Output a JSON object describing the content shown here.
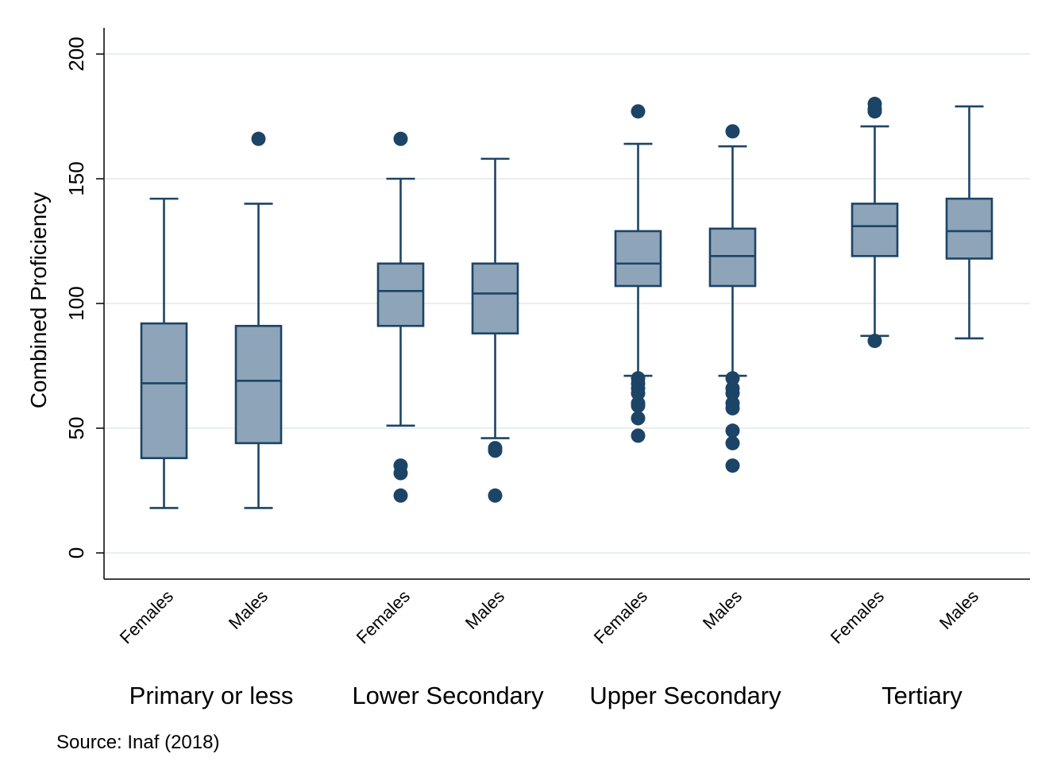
{
  "chart_data": {
    "type": "box",
    "ylabel": "Combined Proficiency",
    "ylim": [
      -10,
      210
    ],
    "yticks": [
      "0",
      "50",
      "100",
      "150",
      "200"
    ],
    "grid": true,
    "source_note": "Source: Inaf (2018)",
    "colors": {
      "box_fill": "#8ea4b9",
      "box_stroke": "#1c4466",
      "outlier": "#1c4466",
      "grid": "#e8eef0"
    },
    "groups": [
      {
        "label": "Primary or less",
        "boxes": [
          {
            "category": "Females",
            "whisker_low": 18,
            "q1": 38,
            "median": 68,
            "q3": 92,
            "whisker_high": 142,
            "outliers": []
          },
          {
            "category": "Males",
            "whisker_low": 18,
            "q1": 44,
            "median": 69,
            "q3": 91,
            "whisker_high": 140,
            "outliers": [
              166
            ]
          }
        ]
      },
      {
        "label": "Lower Secondary",
        "boxes": [
          {
            "category": "Females",
            "whisker_low": 51,
            "q1": 91,
            "median": 105,
            "q3": 116,
            "whisker_high": 150,
            "outliers": [
              166,
              35,
              32,
              23
            ]
          },
          {
            "category": "Males",
            "whisker_low": 46,
            "q1": 88,
            "median": 104,
            "q3": 116,
            "whisker_high": 158,
            "outliers": [
              42,
              41,
              23
            ]
          }
        ]
      },
      {
        "label": "Upper Secondary",
        "boxes": [
          {
            "category": "Females",
            "whisker_low": 71,
            "q1": 107,
            "median": 116,
            "q3": 129,
            "whisker_high": 164,
            "outliers": [
              177,
              70,
              68,
              66,
              64,
              60,
              59,
              54,
              47
            ]
          },
          {
            "category": "Males",
            "whisker_low": 71,
            "q1": 107,
            "median": 119,
            "q3": 130,
            "whisker_high": 163,
            "outliers": [
              169,
              70,
              66,
              64,
              60,
              58,
              49,
              44,
              35
            ]
          }
        ]
      },
      {
        "label": "Tertiary",
        "boxes": [
          {
            "category": "Females",
            "whisker_low": 87,
            "q1": 119,
            "median": 131,
            "q3": 140,
            "whisker_high": 171,
            "outliers": [
              180,
              178,
              177,
              85
            ]
          },
          {
            "category": "Males",
            "whisker_low": 86,
            "q1": 118,
            "median": 129,
            "q3": 142,
            "whisker_high": 179,
            "outliers": []
          }
        ]
      }
    ]
  }
}
